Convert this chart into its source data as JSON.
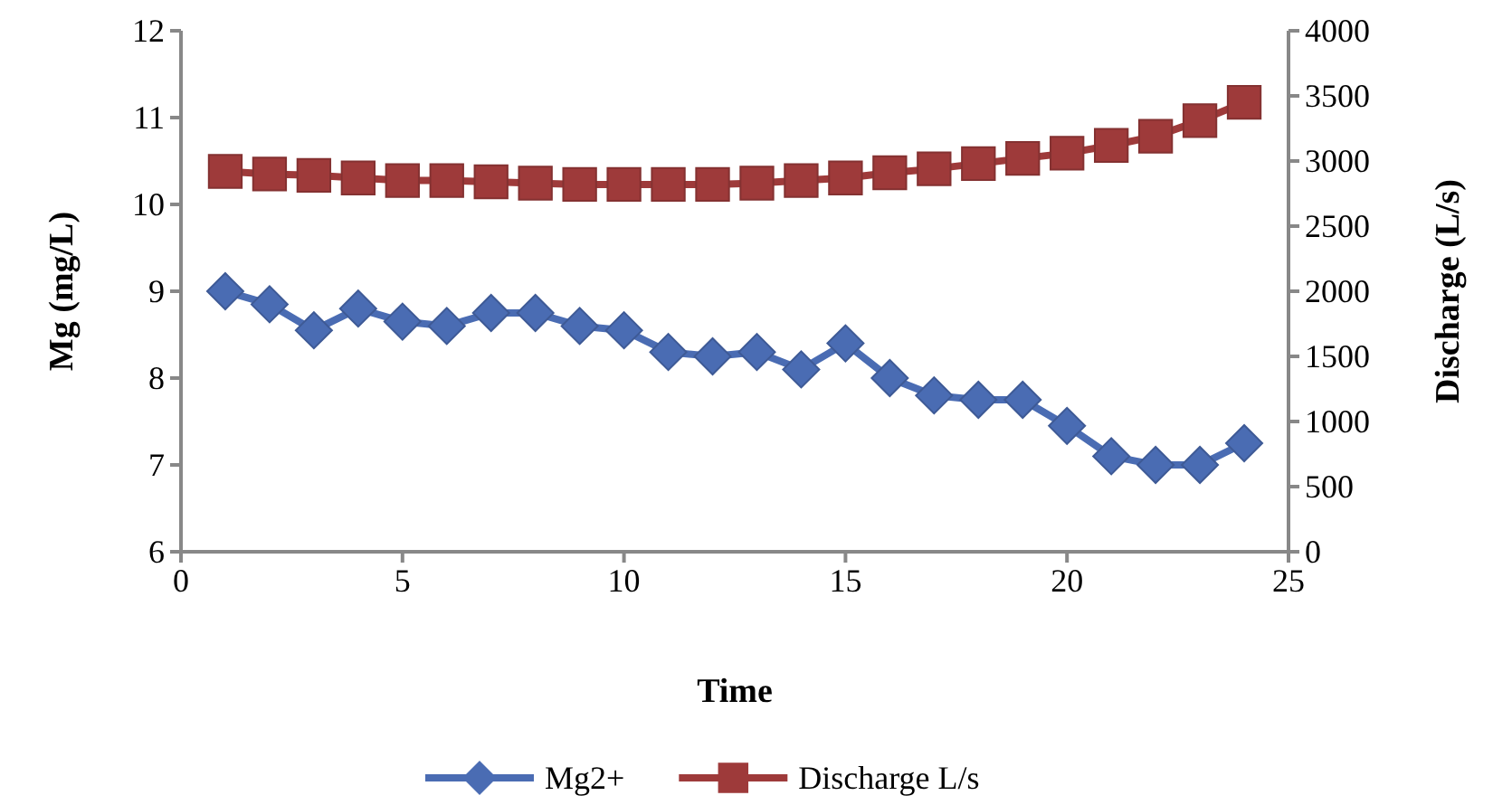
{
  "chart_data": {
    "type": "line",
    "xlabel": "Time",
    "ylabel": "Mg (mg/L)",
    "y2label": "Discharge (L/s)",
    "x": [
      1,
      2,
      3,
      4,
      5,
      6,
      7,
      8,
      9,
      10,
      11,
      12,
      13,
      14,
      15,
      16,
      17,
      18,
      19,
      20,
      21,
      22,
      23,
      24
    ],
    "xlim": [
      0,
      25
    ],
    "xticks": [
      0,
      5,
      10,
      15,
      20,
      25
    ],
    "ylim": [
      6,
      12
    ],
    "yticks": [
      6,
      7,
      8,
      9,
      10,
      11,
      12
    ],
    "y2lim": [
      0,
      4000
    ],
    "y2ticks": [
      0,
      500,
      1000,
      1500,
      2000,
      2500,
      3000,
      3500,
      4000
    ],
    "grid": false,
    "legend": "bottom",
    "line_style": "solid",
    "series": [
      {
        "name": "Mg2+",
        "color": "#4a6cb3",
        "marker": "diamond",
        "values": [
          9.0,
          8.85,
          8.55,
          8.8,
          8.65,
          8.6,
          8.75,
          8.75,
          8.6,
          8.55,
          8.3,
          8.25,
          8.3,
          8.1,
          8.4,
          8.0,
          7.8,
          7.75,
          7.75,
          7.45,
          7.1,
          7.0,
          7.0,
          7.25
        ]
      },
      {
        "name": "Discharge L/s",
        "color": "#9e3a3a",
        "marker": "square",
        "axis": "y2",
        "values": [
          2920,
          2900,
          2890,
          2870,
          2850,
          2850,
          2840,
          2830,
          2820,
          2820,
          2820,
          2820,
          2830,
          2850,
          2870,
          2910,
          2940,
          2980,
          3020,
          3060,
          3120,
          3190,
          3310,
          3450
        ]
      }
    ]
  }
}
